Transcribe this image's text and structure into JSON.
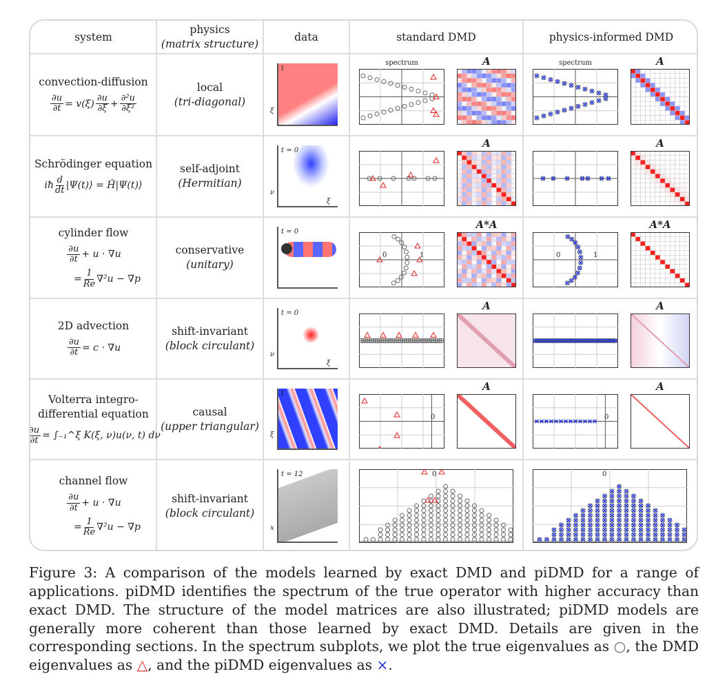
{
  "header": {
    "system": "system",
    "physics": "physics",
    "physics_sub": "(matrix structure)",
    "data": "data",
    "standard": "standard DMD",
    "pi": "physics-informed DMD"
  },
  "rows": [
    {
      "system": "convection-diffusion",
      "equation": [
        {
          "f": [
            "∂u",
            "∂t"
          ]
        },
        {
          "t": " = v(ξ)"
        },
        {
          "f": [
            "∂u",
            "∂ξ"
          ]
        },
        {
          "t": " + "
        },
        {
          "f": [
            "∂²u",
            "∂ξ²"
          ]
        }
      ],
      "physics": "local",
      "structure": "(tri-diagonal)",
      "data_labels": [
        "t",
        "ξ"
      ],
      "std_spectrum_label": "spectrum",
      "std_matrix_label": "A",
      "pi_spectrum_label": "spectrum",
      "pi_matrix_label": "A"
    },
    {
      "system": "Schrödinger equation",
      "equation": [
        {
          "t": "iħ"
        },
        {
          "f": [
            "d",
            "dt"
          ]
        },
        {
          "t": "|Ψ(t)⟩ = Ĥ|Ψ(t)⟩"
        }
      ],
      "physics": "self-adjoint",
      "structure": "(Hermitian)",
      "data_labels": [
        "t = 0",
        "ν",
        "ξ"
      ],
      "std_matrix_label": "A",
      "pi_matrix_label": "A"
    },
    {
      "system": "cylinder flow",
      "equation": [
        {
          "f": [
            "∂u",
            "∂t"
          ]
        },
        {
          "t": " + u · ∇u"
        }
      ],
      "equation2": [
        {
          "t": "= "
        },
        {
          "f": [
            "1",
            "Re"
          ]
        },
        {
          "t": "∇²u − ∇p"
        }
      ],
      "physics": "conservative",
      "structure": "(unitary)",
      "data_labels": [
        "t = 0"
      ],
      "std_matrix_label": "A*A",
      "pi_matrix_label": "A*A",
      "axis_ticks": [
        "0",
        "1"
      ]
    },
    {
      "system": "2D advection",
      "equation": [
        {
          "f": [
            "∂u",
            "∂t"
          ]
        },
        {
          "t": " = c · ∇u"
        }
      ],
      "physics": "shift-invariant",
      "structure": "(block circulant)",
      "data_labels": [
        "t = 0",
        "ν",
        "ξ"
      ],
      "std_matrix_label": "A",
      "pi_matrix_label": "A"
    },
    {
      "system": "Volterra integro-differential equation",
      "equation": [
        {
          "f": [
            "∂u",
            "∂t"
          ]
        },
        {
          "t": " = ∫₋₁^ξ K(ξ, ν)u(ν, t) dν"
        }
      ],
      "physics": "causal",
      "structure": "(upper triangular)",
      "data_labels": [
        "t",
        "ξ"
      ],
      "std_matrix_label": "A",
      "pi_matrix_label": "A",
      "axis_ticks": [
        "0"
      ]
    },
    {
      "system": "channel flow",
      "equation": [
        {
          "f": [
            "∂u",
            "∂t"
          ]
        },
        {
          "t": " + u · ∇u"
        }
      ],
      "equation2": [
        {
          "t": "= "
        },
        {
          "f": [
            "1",
            "Re"
          ]
        },
        {
          "t": "∇²u − ∇p"
        }
      ],
      "physics": "shift-invariant",
      "structure": "(block circulant)",
      "data_labels": [
        "t = 12",
        "x"
      ],
      "axis_ticks": [
        "0"
      ]
    }
  ],
  "colors": {
    "true": "#666666",
    "dmd": "#e02020",
    "pidmd": "#1a2ee0",
    "pos": "#ff2020",
    "neg": "#2030ff",
    "grid": "#dcdcdc"
  },
  "caption": {
    "text": "Figure 3: A comparison of the models learned by exact DMD and piDMD for a range of applications. piDMD identifies the spectrum of the true operator with higher accuracy than exact DMD. The structure of the model matrices are also illustrated; piDMD models are generally more coherent than those learned by exact DMD. Details are given in the corresponding sections. In the spectrum subplots, we plot the true eigenvalues as ",
    "true_sym": "○",
    "mid1": ", the DMD eigenvalues as ",
    "dmd_sym": "△",
    "mid2": ", and the piDMD eigenvalues as ",
    "pi_sym": "×",
    "end": "."
  }
}
